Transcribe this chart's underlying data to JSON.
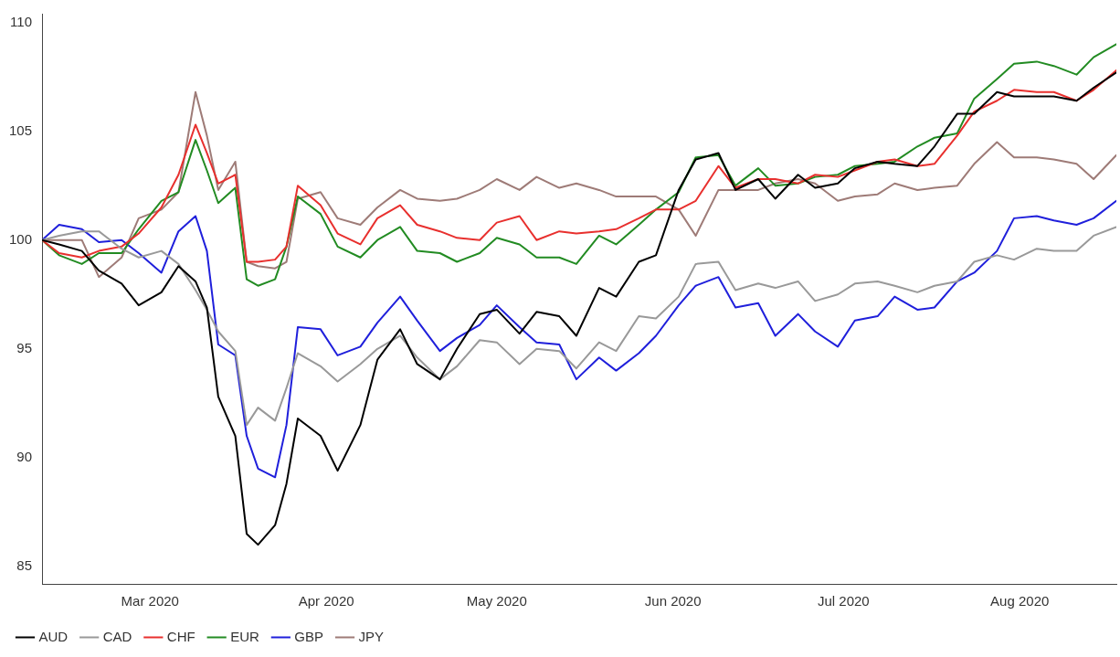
{
  "chart_data": {
    "type": "line",
    "x": [
      "2020-02-11",
      "2020-02-14",
      "2020-02-18",
      "2020-02-21",
      "2020-02-25",
      "2020-02-28",
      "2020-03-03",
      "2020-03-06",
      "2020-03-09",
      "2020-03-11",
      "2020-03-13",
      "2020-03-16",
      "2020-03-18",
      "2020-03-20",
      "2020-03-23",
      "2020-03-25",
      "2020-03-27",
      "2020-03-31",
      "2020-04-03",
      "2020-04-07",
      "2020-04-10",
      "2020-04-14",
      "2020-04-17",
      "2020-04-21",
      "2020-04-24",
      "2020-04-28",
      "2020-05-01",
      "2020-05-05",
      "2020-05-08",
      "2020-05-12",
      "2020-05-15",
      "2020-05-19",
      "2020-05-22",
      "2020-05-26",
      "2020-05-29",
      "2020-06-02",
      "2020-06-05",
      "2020-06-09",
      "2020-06-12",
      "2020-06-16",
      "2020-06-19",
      "2020-06-23",
      "2020-06-26",
      "2020-06-30",
      "2020-07-03",
      "2020-07-07",
      "2020-07-10",
      "2020-07-14",
      "2020-07-17",
      "2020-07-21",
      "2020-07-24",
      "2020-07-28",
      "2020-07-31",
      "2020-08-04",
      "2020-08-07",
      "2020-08-11",
      "2020-08-14",
      "2020-08-18"
    ],
    "series": [
      {
        "name": "AUD",
        "color": "#000000",
        "values": [
          100,
          99.8,
          99.5,
          98.6,
          98.0,
          97.0,
          97.6,
          98.8,
          98.1,
          96.9,
          92.8,
          91.0,
          86.5,
          86.0,
          86.9,
          88.8,
          91.8,
          91.0,
          89.4,
          91.5,
          94.5,
          95.9,
          94.3,
          93.6,
          95.0,
          96.6,
          96.8,
          95.7,
          96.7,
          96.5,
          95.6,
          97.8,
          97.4,
          99.0,
          99.3,
          102.3,
          103.7,
          104.0,
          102.3,
          102.8,
          101.9,
          103.0,
          102.4,
          102.6,
          103.3,
          103.6,
          103.5,
          103.4,
          104.3,
          105.8,
          105.8,
          106.8,
          106.6,
          106.6,
          106.6,
          106.4,
          107.0,
          107.7
        ]
      },
      {
        "name": "CAD",
        "color": "#999999",
        "values": [
          100,
          100.2,
          100.4,
          100.4,
          99.6,
          99.2,
          99.5,
          98.9,
          97.7,
          96.8,
          95.8,
          94.9,
          91.5,
          92.3,
          91.7,
          93.2,
          94.8,
          94.2,
          93.5,
          94.3,
          95.0,
          95.6,
          94.6,
          93.6,
          94.2,
          95.4,
          95.3,
          94.3,
          95.0,
          94.9,
          94.1,
          95.3,
          94.9,
          96.5,
          96.4,
          97.4,
          98.9,
          99.0,
          97.7,
          98.0,
          97.8,
          98.1,
          97.2,
          97.5,
          98.0,
          98.1,
          97.9,
          97.6,
          97.9,
          98.1,
          99.0,
          99.3,
          99.1,
          99.6,
          99.5,
          99.5,
          100.2,
          100.6
        ]
      },
      {
        "name": "CHF",
        "color": "#e8302e",
        "values": [
          100,
          99.4,
          99.2,
          99.5,
          99.7,
          100.3,
          101.5,
          103.0,
          105.3,
          104.0,
          102.6,
          103.0,
          99.0,
          99.0,
          99.1,
          99.7,
          102.5,
          101.6,
          100.3,
          99.8,
          101.0,
          101.6,
          100.7,
          100.4,
          100.1,
          100.0,
          100.8,
          101.1,
          100.0,
          100.4,
          100.3,
          100.4,
          100.5,
          101.0,
          101.4,
          101.4,
          101.8,
          103.4,
          102.4,
          102.8,
          102.8,
          102.6,
          103.0,
          102.9,
          103.2,
          103.6,
          103.7,
          103.4,
          103.5,
          104.8,
          105.9,
          106.4,
          106.9,
          106.8,
          106.8,
          106.4,
          106.9,
          107.8
        ]
      },
      {
        "name": "EUR",
        "color": "#228b22",
        "values": [
          100,
          99.3,
          98.9,
          99.4,
          99.4,
          100.5,
          101.8,
          102.2,
          104.6,
          103.2,
          101.7,
          102.4,
          98.2,
          97.9,
          98.2,
          99.7,
          102.0,
          101.2,
          99.7,
          99.2,
          100.0,
          100.6,
          99.5,
          99.4,
          99.0,
          99.4,
          100.1,
          99.8,
          99.2,
          99.2,
          98.9,
          100.2,
          99.8,
          100.7,
          101.4,
          102.2,
          103.8,
          103.9,
          102.5,
          103.3,
          102.5,
          102.6,
          102.9,
          103.0,
          103.4,
          103.5,
          103.6,
          104.3,
          104.7,
          104.9,
          106.5,
          107.4,
          108.1,
          108.2,
          108.0,
          107.6,
          108.4,
          109.0
        ]
      },
      {
        "name": "GBP",
        "color": "#1f1fdb",
        "values": [
          100,
          100.7,
          100.5,
          99.9,
          100.0,
          99.4,
          98.5,
          100.4,
          101.1,
          99.5,
          95.2,
          94.7,
          91.0,
          89.5,
          89.1,
          91.5,
          96.0,
          95.9,
          94.7,
          95.1,
          96.2,
          97.4,
          96.3,
          94.9,
          95.5,
          96.1,
          97.0,
          96.0,
          95.3,
          95.2,
          93.6,
          94.6,
          94.0,
          94.8,
          95.6,
          97.0,
          97.9,
          98.3,
          96.9,
          97.1,
          95.6,
          96.6,
          95.8,
          95.1,
          96.3,
          96.5,
          97.4,
          96.8,
          96.9,
          98.1,
          98.5,
          99.5,
          101.0,
          101.1,
          100.9,
          100.7,
          101.0,
          101.8
        ]
      },
      {
        "name": "JPY",
        "color": "#9e7b77",
        "values": [
          100,
          100.0,
          100.0,
          98.3,
          99.2,
          101.0,
          101.4,
          102.2,
          106.8,
          104.8,
          102.3,
          103.6,
          99.0,
          98.8,
          98.7,
          99.0,
          101.9,
          102.2,
          101.0,
          100.7,
          101.5,
          102.3,
          101.9,
          101.8,
          101.9,
          102.3,
          102.8,
          102.3,
          102.9,
          102.4,
          102.6,
          102.3,
          102.0,
          102.0,
          102.0,
          101.4,
          100.2,
          102.3,
          102.3,
          102.3,
          102.6,
          102.8,
          102.6,
          101.8,
          102.0,
          102.1,
          102.6,
          102.3,
          102.4,
          102.5,
          103.5,
          104.5,
          103.8,
          103.8,
          103.7,
          103.5,
          102.8,
          103.9
        ]
      }
    ],
    "xlim": [
      "2020-02-11",
      "2020-08-18"
    ],
    "xticks": [
      {
        "value": "2020-03-01",
        "label": "Mar 2020"
      },
      {
        "value": "2020-04-01",
        "label": "Apr 2020"
      },
      {
        "value": "2020-05-01",
        "label": "May 2020"
      },
      {
        "value": "2020-06-01",
        "label": "Jun 2020"
      },
      {
        "value": "2020-07-01",
        "label": "Jul 2020"
      },
      {
        "value": "2020-08-01",
        "label": "Aug 2020"
      }
    ],
    "ylim": [
      84.2,
      110.4
    ],
    "yticks": [
      85,
      90,
      95,
      100,
      105,
      110
    ],
    "legend": "bottom left"
  }
}
